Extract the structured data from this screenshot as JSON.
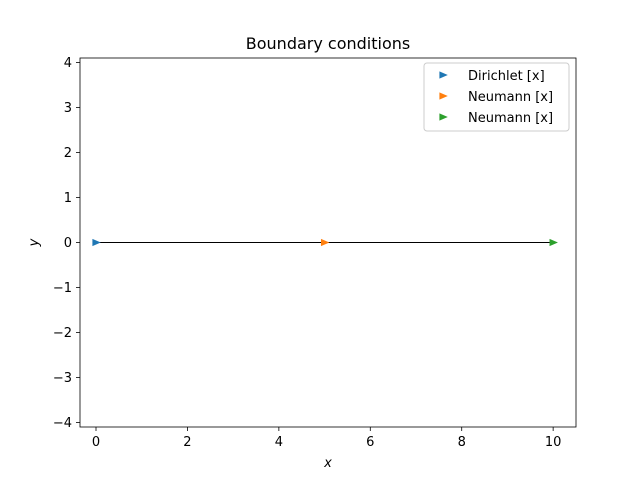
{
  "chart_data": {
    "type": "line",
    "title": "Boundary conditions",
    "xlabel": "x",
    "ylabel": "y",
    "xlim": [
      -0.35,
      10.5
    ],
    "ylim": [
      -4.1,
      4.1
    ],
    "xticks": [
      0,
      2,
      4,
      6,
      8,
      10
    ],
    "yticks": [
      -4,
      -3,
      -2,
      -1,
      0,
      1,
      2,
      3,
      4
    ],
    "grid": false,
    "legend_position": "top-right",
    "domain_line": {
      "x": [
        0,
        10
      ],
      "y": [
        0,
        0
      ],
      "color": "#000000"
    },
    "series": [
      {
        "name": "Dirichlet  [x]",
        "marker": "triangle-right",
        "color": "#1f77b4",
        "x": [
          0
        ],
        "y": [
          0
        ]
      },
      {
        "name": "Neumann  [x]",
        "marker": "triangle-right",
        "color": "#ff7f0e",
        "x": [
          5
        ],
        "y": [
          0
        ]
      },
      {
        "name": "Neumann  [x]",
        "marker": "triangle-right",
        "color": "#2ca02c",
        "x": [
          10
        ],
        "y": [
          0
        ]
      }
    ]
  }
}
